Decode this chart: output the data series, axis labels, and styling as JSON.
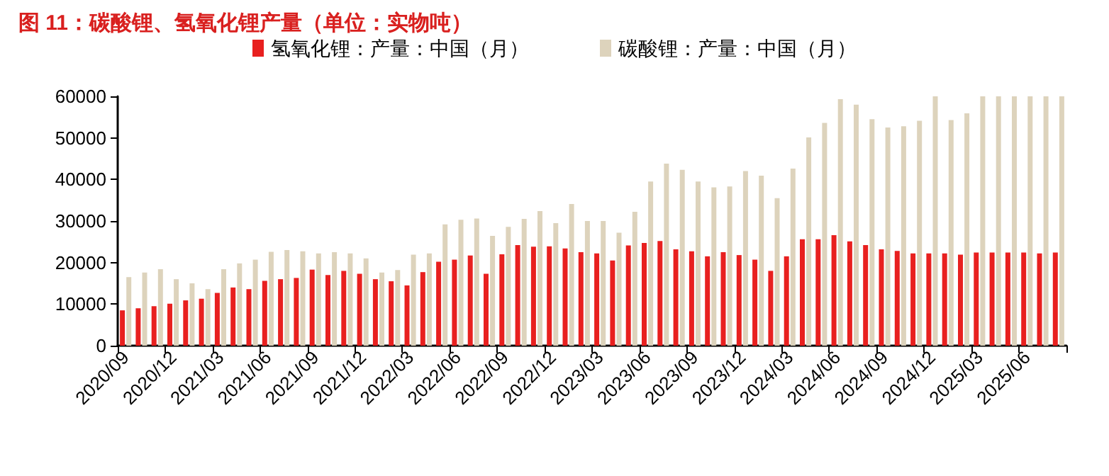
{
  "chart_data": {
    "type": "bar",
    "title": "图 11：碳酸锂、氢氧化锂产量（单位：实物吨）",
    "categories": [
      "2020/09",
      null,
      null,
      "2020/12",
      null,
      null,
      "2021/03",
      null,
      null,
      "2021/06",
      null,
      null,
      "2021/09",
      null,
      null,
      "2021/12",
      null,
      null,
      "2022/03",
      null,
      null,
      "2022/06",
      null,
      null,
      "2022/09",
      null,
      null,
      "2022/12",
      null,
      null,
      "2023/03",
      null,
      null,
      "2023/06",
      null,
      null,
      "2023/09",
      null,
      null,
      "2023/12",
      null,
      null,
      "2024/03",
      null,
      null,
      "2024/06",
      null,
      null,
      "2024/09",
      null,
      null,
      "2024/12",
      null,
      null,
      "2025/03",
      null,
      null,
      "2025/06",
      null,
      null
    ],
    "series": [
      {
        "name": "氢氧化锂：产量：中国（月）",
        "color": "#e8201f",
        "values": [
          8500,
          9000,
          9500,
          10100,
          10900,
          11300,
          12700,
          14000,
          13600,
          15600,
          16000,
          16300,
          18300,
          17000,
          18000,
          17300,
          16000,
          15500,
          14500,
          17700,
          20200,
          20700,
          21700,
          17300,
          22000,
          24200,
          23800,
          23900,
          23400,
          22500,
          22200,
          20500,
          24100,
          24700,
          25200,
          23200,
          22700,
          21500,
          22500,
          21800,
          20700,
          18000,
          21500,
          25600,
          25600,
          26600,
          25100,
          24200,
          23200,
          22800,
          22200,
          22200,
          22200,
          21900,
          22400,
          22400,
          22400,
          22400,
          22200,
          22400
        ]
      },
      {
        "name": "碳酸锂：产量：中国（月）",
        "color": "#ddd3bc",
        "values": [
          16500,
          17600,
          18400,
          16000,
          15000,
          13600,
          18400,
          19800,
          20700,
          22600,
          23000,
          22700,
          22200,
          22500,
          22200,
          21000,
          17600,
          18200,
          21900,
          22200,
          29200,
          30300,
          30600,
          26400,
          28600,
          30500,
          32400,
          29500,
          34100,
          30000,
          30000,
          27200,
          32200,
          39500,
          43800,
          42300,
          39500,
          38100,
          38300,
          42000,
          40900,
          35500,
          42600,
          50100,
          53600,
          59300,
          58000,
          54500,
          52500,
          52800,
          54100,
          60000,
          54300,
          55900,
          60000,
          60000,
          60000,
          60000,
          60000,
          60000
        ]
      }
    ],
    "ylim": [
      0,
      60000
    ],
    "yticks": [
      0,
      10000,
      20000,
      30000,
      40000,
      50000,
      60000
    ],
    "grid": false,
    "legend": "top"
  }
}
